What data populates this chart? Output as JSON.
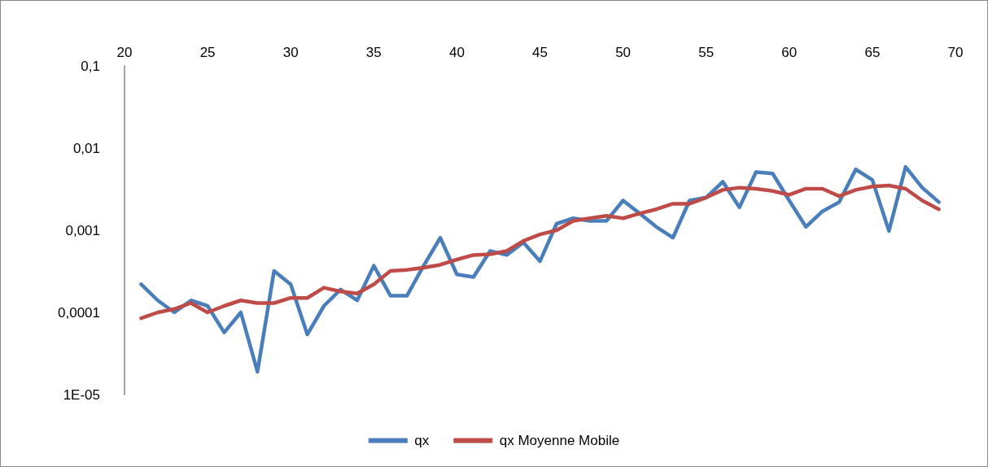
{
  "chart_data": {
    "type": "line",
    "x": [
      21,
      22,
      23,
      24,
      25,
      26,
      27,
      28,
      29,
      30,
      31,
      32,
      33,
      34,
      35,
      36,
      37,
      38,
      39,
      40,
      41,
      42,
      43,
      44,
      45,
      46,
      47,
      48,
      49,
      50,
      51,
      52,
      53,
      54,
      55,
      56,
      57,
      58,
      59,
      60,
      61,
      62,
      63,
      64,
      65,
      66,
      67,
      68,
      69
    ],
    "series": [
      {
        "name": "qx",
        "color": "#4a7ebb",
        "values": [
          0.00022,
          0.00014,
          0.0001,
          0.00014,
          0.00012,
          5.7e-05,
          0.0001,
          1.9e-05,
          0.00032,
          0.00022,
          5.4e-05,
          0.00012,
          0.00019,
          0.00014,
          0.00037,
          0.00016,
          0.00016,
          0.00037,
          0.00081,
          0.00029,
          0.00027,
          0.00056,
          0.0005,
          0.00071,
          0.00042,
          0.0012,
          0.0014,
          0.0013,
          0.0013,
          0.0023,
          0.0016,
          0.0011,
          0.00081,
          0.0023,
          0.0025,
          0.0039,
          0.0019,
          0.0051,
          0.0049,
          0.0023,
          0.0011,
          0.0017,
          0.0022,
          0.0055,
          0.0041,
          0.00098,
          0.0059,
          0.0033,
          0.0022
        ]
      },
      {
        "name": "qx Moyenne Mobile",
        "color": "#be4b48",
        "values": [
          8.5e-05,
          0.0001,
          0.00011,
          0.00013,
          0.0001,
          0.00012,
          0.00014,
          0.00013,
          0.00013,
          0.00015,
          0.00015,
          0.0002,
          0.00018,
          0.00017,
          0.00022,
          0.00032,
          0.00033,
          0.00035,
          0.00038,
          0.00044,
          0.0005,
          0.00051,
          0.00056,
          0.00074,
          0.00089,
          0.001,
          0.0013,
          0.0014,
          0.0015,
          0.0014,
          0.0016,
          0.0018,
          0.0021,
          0.0021,
          0.0025,
          0.0031,
          0.0033,
          0.0032,
          0.003,
          0.0027,
          0.0032,
          0.0032,
          0.0026,
          0.0031,
          0.0034,
          0.0035,
          0.0032,
          0.0023,
          0.0018
        ]
      }
    ],
    "xlim": [
      20,
      70
    ],
    "xticks": [
      20,
      25,
      30,
      35,
      40,
      45,
      50,
      55,
      60,
      65,
      70
    ],
    "ylim": [
      1e-05,
      0.1
    ],
    "yticks": [
      {
        "value": 1e-05,
        "label": "1E-05"
      },
      {
        "value": 0.0001,
        "label": "0,0001"
      },
      {
        "value": 0.001,
        "label": "0,001"
      },
      {
        "value": 0.01,
        "label": "0,01"
      },
      {
        "value": 0.1,
        "label": "0,1"
      }
    ],
    "log": "y",
    "grid": false,
    "legend": "bottom",
    "marker": "none",
    "line_style": "solid"
  }
}
